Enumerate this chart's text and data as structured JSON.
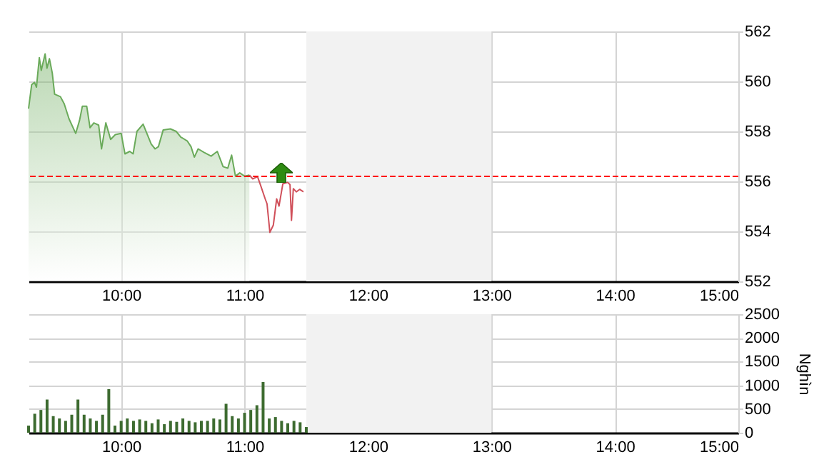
{
  "chart_data": [
    {
      "type": "line",
      "xlim": [
        9.25,
        15
      ],
      "xticks": [
        {
          "value": 10,
          "label": "10:00"
        },
        {
          "value": 11,
          "label": "11:00"
        },
        {
          "value": 12,
          "label": "12:00"
        },
        {
          "value": 13,
          "label": "13:00"
        },
        {
          "value": 14,
          "label": "14:00"
        },
        {
          "value": 15,
          "label": "15:00"
        }
      ],
      "ylim": [
        552,
        562
      ],
      "yticks": [
        552,
        554,
        556,
        558,
        560,
        562
      ],
      "grid": true,
      "series": [
        {
          "type": "area",
          "color": "#6aaa5a",
          "x": [
            9.25,
            9.275,
            9.298,
            9.314,
            9.337,
            9.353,
            9.384,
            9.399,
            9.419,
            9.442,
            9.461,
            9.508,
            9.539,
            9.578,
            9.632,
            9.663,
            9.686,
            9.721,
            9.748,
            9.779,
            9.818,
            9.841,
            9.876,
            9.915,
            9.953,
            10.0,
            10.031,
            10.07,
            10.097,
            10.128,
            10.178,
            10.205,
            10.244,
            10.275,
            10.302,
            10.341,
            10.399,
            10.446,
            10.484,
            10.535,
            10.566,
            10.593,
            10.624,
            10.671,
            10.729,
            10.779,
            10.826,
            10.864,
            10.895,
            10.926,
            10.961,
            11.0,
            11.039
          ],
          "values": [
            558.91,
            559.87,
            559.96,
            559.77,
            560.95,
            560.44,
            561.1,
            560.53,
            560.91,
            560.34,
            559.49,
            559.39,
            559.1,
            558.5,
            557.92,
            558.44,
            559.01,
            559.01,
            558.15,
            558.34,
            558.25,
            557.3,
            558.34,
            557.68,
            557.87,
            557.92,
            557.1,
            557.2,
            557.1,
            558.0,
            558.29,
            557.96,
            557.49,
            557.3,
            557.39,
            558.06,
            558.1,
            558.0,
            557.77,
            557.62,
            557.39,
            556.97,
            557.3,
            557.16,
            557.01,
            557.2,
            556.59,
            556.53,
            557.05,
            556.21,
            556.34,
            556.21,
            556.25
          ]
        },
        {
          "color": "#d0505a",
          "x": [
            11.039,
            11.066,
            11.105,
            11.128,
            11.167,
            11.182,
            11.205,
            11.233,
            11.26,
            11.279,
            11.31,
            11.349,
            11.368,
            11.38,
            11.395,
            11.419,
            11.446,
            11.477
          ],
          "values": [
            556.25,
            556.1,
            556.19,
            555.87,
            555.3,
            555.1,
            553.96,
            554.25,
            555.3,
            555.01,
            555.9,
            555.96,
            555.87,
            554.44,
            555.71,
            555.58,
            555.68,
            555.58
          ]
        }
      ],
      "ref_lines": [
        {
          "axis": "y",
          "value": 556.2,
          "color": "#ff0000",
          "line_style": "dashed"
        }
      ],
      "bands": [
        {
          "axis": "x",
          "from": 11.5,
          "to": 13,
          "color": "#f2f2f2"
        }
      ]
    },
    {
      "type": "bar",
      "ylabel": "Nghìn",
      "xlim": [
        9.25,
        15
      ],
      "xticks": [
        {
          "value": 10,
          "label": "10:00"
        },
        {
          "value": 11,
          "label": "11:00"
        },
        {
          "value": 12,
          "label": "12:00"
        },
        {
          "value": 13,
          "label": "13:00"
        },
        {
          "value": 14,
          "label": "14:00"
        },
        {
          "value": 15,
          "label": "15:00"
        }
      ],
      "ylim": [
        0,
        2500
      ],
      "yticks": [
        0,
        500,
        1000,
        1500,
        2000,
        2500
      ],
      "grid": true,
      "series": [
        {
          "color": "#3d6b30",
          "x": [
            9.25,
            9.3,
            9.35,
            9.4,
            9.45,
            9.5,
            9.55,
            9.6,
            9.65,
            9.7,
            9.75,
            9.8,
            9.85,
            9.9,
            9.95,
            10.0,
            10.05,
            10.1,
            10.15,
            10.2,
            10.25,
            10.3,
            10.35,
            10.4,
            10.45,
            10.5,
            10.55,
            10.6,
            10.65,
            10.7,
            10.75,
            10.8,
            10.85,
            10.9,
            10.95,
            11.0,
            11.05,
            11.1,
            11.15,
            11.2,
            11.25,
            11.3,
            11.35,
            11.4,
            11.45,
            11.5
          ],
          "values": [
            150,
            400,
            480,
            700,
            350,
            300,
            250,
            380,
            700,
            380,
            300,
            250,
            380,
            920,
            150,
            250,
            300,
            250,
            280,
            250,
            200,
            280,
            180,
            250,
            230,
            300,
            250,
            220,
            250,
            250,
            300,
            280,
            610,
            350,
            300,
            420,
            480,
            580,
            1070,
            300,
            330,
            250,
            200,
            250,
            220,
            120
          ]
        }
      ],
      "bands": [
        {
          "axis": "x",
          "from": 11.5,
          "to": 13,
          "color": "#f2f2f2"
        }
      ]
    }
  ]
}
